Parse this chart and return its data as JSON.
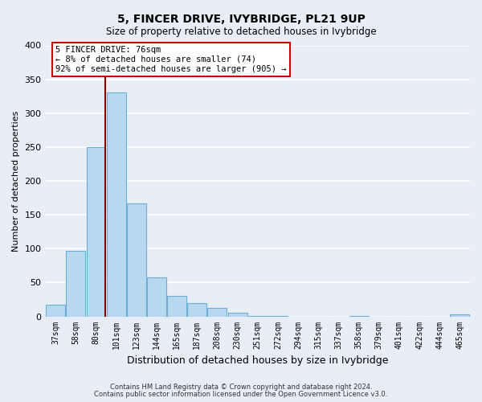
{
  "title": "5, FINCER DRIVE, IVYBRIDGE, PL21 9UP",
  "subtitle": "Size of property relative to detached houses in Ivybridge",
  "xlabel": "Distribution of detached houses by size in Ivybridge",
  "ylabel": "Number of detached properties",
  "bar_labels": [
    "37sqm",
    "58sqm",
    "80sqm",
    "101sqm",
    "123sqm",
    "144sqm",
    "165sqm",
    "187sqm",
    "208sqm",
    "230sqm",
    "251sqm",
    "272sqm",
    "294sqm",
    "315sqm",
    "337sqm",
    "358sqm",
    "379sqm",
    "401sqm",
    "422sqm",
    "444sqm",
    "465sqm"
  ],
  "bar_heights": [
    17,
    97,
    250,
    330,
    167,
    58,
    30,
    20,
    13,
    5,
    1,
    1,
    0,
    0,
    0,
    1,
    0,
    0,
    0,
    0,
    3
  ],
  "bar_color": "#b8d8f0",
  "bar_edge_color": "#6aadd5",
  "annotation_text_line1": "5 FINCER DRIVE: 76sqm",
  "annotation_text_line2": "← 8% of detached houses are smaller (74)",
  "annotation_text_line3": "92% of semi-detached houses are larger (905) →",
  "annotation_box_facecolor": "#ffffff",
  "annotation_box_edgecolor": "#cc0000",
  "vline_color": "#8b0000",
  "vline_x_index": 2,
  "ylim": [
    0,
    400
  ],
  "yticks": [
    0,
    50,
    100,
    150,
    200,
    250,
    300,
    350,
    400
  ],
  "background_color": "#e8eef5",
  "grid_color": "#ffffff",
  "footnote1": "Contains HM Land Registry data © Crown copyright and database right 2024.",
  "footnote2": "Contains public sector information licensed under the Open Government Licence v3.0."
}
